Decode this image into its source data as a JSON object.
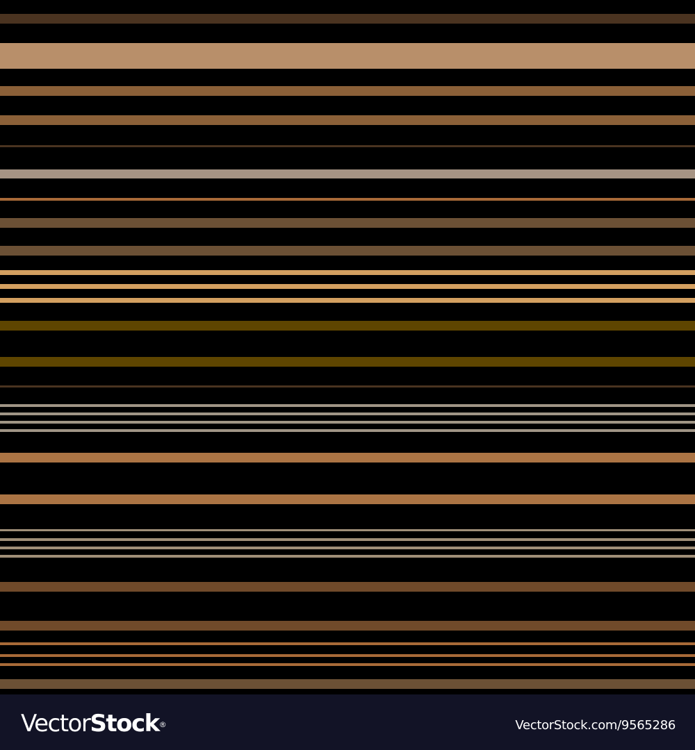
{
  "palette": {
    "dark_brown": "#4a3320",
    "tan": "#b88f6a",
    "brown": "#8b6038",
    "gray_taupe": "#a69484",
    "copper": "#a86a38",
    "umber": "#6b5035",
    "sand": "#d4a060",
    "olive": "#5e4500",
    "warm_gray": "#a09585",
    "caramel": "#ab7444",
    "khaki_gray": "#a08f78",
    "chocolate": "#704a2a",
    "background": "#000000",
    "footer_bg": "#121326"
  },
  "watermark": {
    "logo_light": "Vector",
    "logo_bold": "Stock",
    "logo_mark": "®",
    "image_id": "VectorStock.com/9565286"
  }
}
